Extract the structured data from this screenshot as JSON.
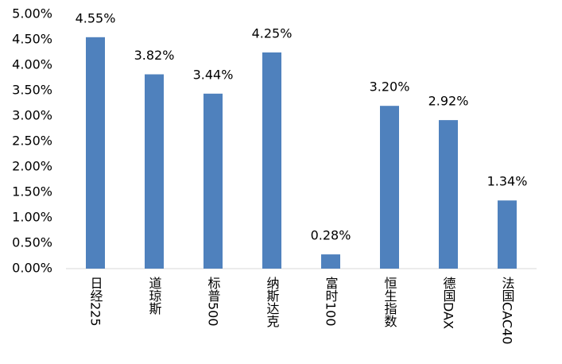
{
  "chart_data": {
    "type": "bar",
    "categories": [
      "日经225",
      "道琼斯",
      "标普500",
      "纳斯达克",
      "富时100",
      "恒生指数",
      "德国DAX",
      "法国CAC40"
    ],
    "values": [
      4.55,
      3.82,
      3.44,
      4.25,
      0.28,
      3.2,
      2.92,
      1.34
    ],
    "value_labels": [
      "4.55%",
      "3.82%",
      "3.44%",
      "4.25%",
      "0.28%",
      "3.20%",
      "2.92%",
      "1.34%"
    ],
    "color": "#4f81bd",
    "ylim": [
      0,
      5
    ],
    "yticks": [
      {
        "value": 0,
        "label": "0.00%"
      },
      {
        "value": 0.5,
        "label": "0.50%"
      },
      {
        "value": 1,
        "label": "1.00%"
      },
      {
        "value": 1.5,
        "label": "1.50%"
      },
      {
        "value": 2,
        "label": "2.00%"
      },
      {
        "value": 2.5,
        "label": "2.50%"
      },
      {
        "value": 3,
        "label": "3.00%"
      },
      {
        "value": 3.5,
        "label": "3.50%"
      },
      {
        "value": 4,
        "label": "4.00%"
      },
      {
        "value": 4.5,
        "label": "4.50%"
      },
      {
        "value": 5,
        "label": "5.00%"
      }
    ],
    "grid": false
  }
}
